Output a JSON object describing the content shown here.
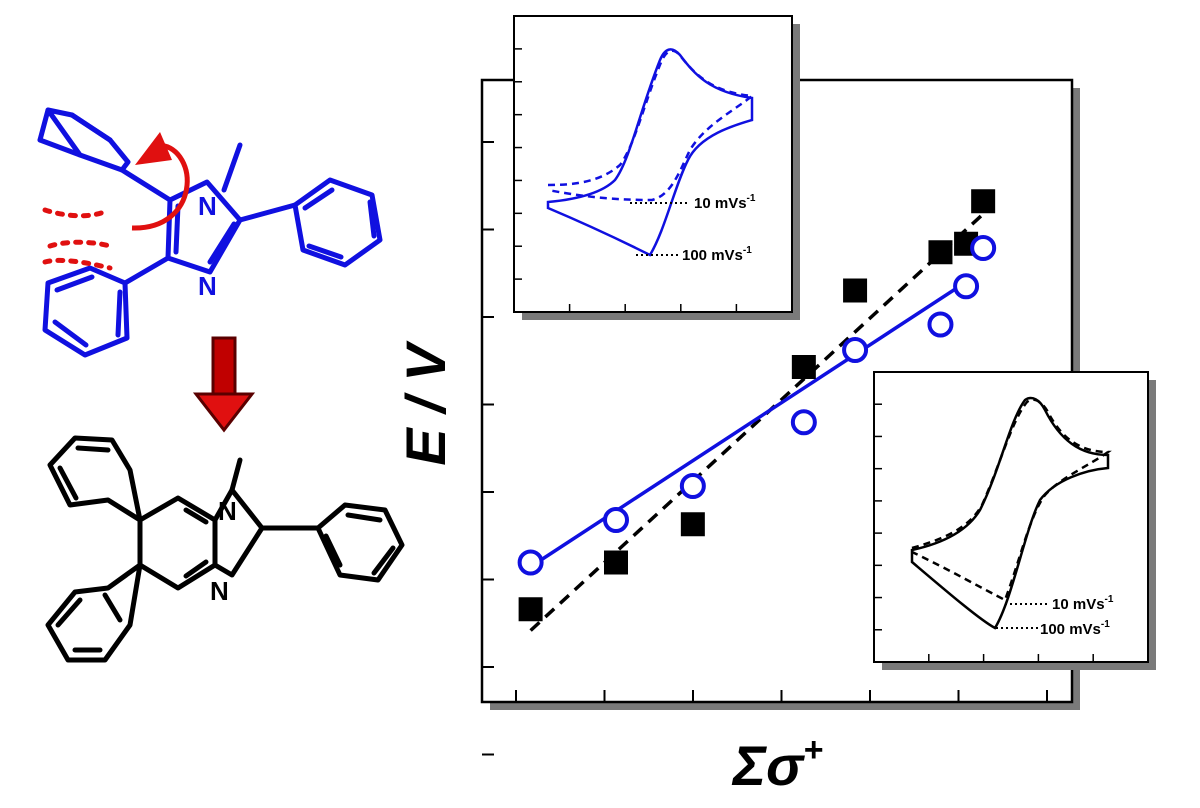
{
  "colors": {
    "blue": "#1010e0",
    "black": "#000000",
    "red": "#e01010",
    "shadow": "#7a7a7a"
  },
  "molecules": {
    "top": {
      "atoms": [
        "N",
        "N"
      ],
      "color": "blue",
      "rotation_arrow": "red"
    },
    "bottom": {
      "atoms": [
        "N",
        "N"
      ],
      "color": "black"
    },
    "reaction_arrow": "red-down-arrow"
  },
  "chart_data": [
    {
      "type": "scatter",
      "xlabel": "Σσ⁺",
      "ylabel": "E / V",
      "x_ticks_shown": false,
      "y_ticks_shown": false,
      "xlim": [
        0,
        6.5
      ],
      "ylim": [
        0,
        7
      ],
      "series": [
        {
          "marker": "filled-square",
          "color": "black",
          "points": [
            [
              0.3,
              0.95
            ],
            [
              1.3,
              1.5
            ],
            [
              2.2,
              1.95
            ],
            [
              3.5,
              3.8
            ],
            [
              4.1,
              4.7
            ],
            [
              5.1,
              5.15
            ],
            [
              5.4,
              5.25
            ],
            [
              5.6,
              5.75
            ]
          ],
          "fit": {
            "style": "dashed",
            "from": [
              0.3,
              0.7
            ],
            "to": [
              5.6,
              5.6
            ]
          }
        },
        {
          "marker": "open-circle",
          "color": "blue",
          "points": [
            [
              0.3,
              1.5
            ],
            [
              1.3,
              2.0
            ],
            [
              2.2,
              2.4
            ],
            [
              3.5,
              3.15
            ],
            [
              4.1,
              4.0
            ],
            [
              5.1,
              4.3
            ],
            [
              5.4,
              4.75
            ],
            [
              5.6,
              5.2
            ]
          ],
          "fit": {
            "style": "solid",
            "from": [
              0.3,
              1.45
            ],
            "to": [
              5.4,
              4.8
            ]
          }
        }
      ]
    },
    {
      "type": "line",
      "subtype": "cyclic-voltammogram",
      "color": "blue",
      "annotations": [
        "10 mVs-1",
        "100 mVs-1"
      ],
      "series": [
        {
          "name": "10 mVs-1",
          "style": "dashed"
        },
        {
          "name": "100 mVs-1",
          "style": "solid"
        }
      ]
    },
    {
      "type": "line",
      "subtype": "cyclic-voltammogram",
      "color": "black",
      "annotations": [
        "10 mVs-1",
        "100 mVs-1"
      ],
      "series": [
        {
          "name": "10 mVs-1",
          "style": "dashed"
        },
        {
          "name": "100 mVs-1",
          "style": "solid"
        }
      ]
    }
  ],
  "labels": {
    "x_title": "Σσ",
    "x_title_sup": "+",
    "y_title": "E / V",
    "inset1_a": "10 mVs",
    "inset1_b": "100 mVs",
    "inset2_a": "10 mVs",
    "inset2_b": "100 mVs",
    "sup": "-1"
  }
}
